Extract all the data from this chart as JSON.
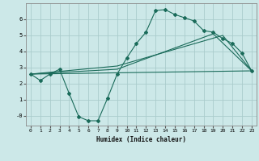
{
  "xlabel": "Humidex (Indice chaleur)",
  "ylabel": "",
  "background_color": "#cce8e8",
  "grid_color": "#aacccc",
  "line_color": "#1a6b5a",
  "xlim": [
    -0.5,
    23.5
  ],
  "ylim": [
    -0.6,
    7.0
  ],
  "yticks": [
    0,
    1,
    2,
    3,
    4,
    5,
    6
  ],
  "xticks": [
    0,
    1,
    2,
    3,
    4,
    5,
    6,
    7,
    8,
    9,
    10,
    11,
    12,
    13,
    14,
    15,
    16,
    17,
    18,
    19,
    20,
    21,
    22,
    23
  ],
  "curve1_x": [
    0,
    1,
    2,
    3,
    4,
    5,
    6,
    7,
    8,
    9,
    10,
    11,
    12,
    13,
    14,
    15,
    16,
    17,
    18,
    19,
    20,
    21,
    22,
    23
  ],
  "curve1_y": [
    2.6,
    2.2,
    2.6,
    2.9,
    1.4,
    -0.05,
    -0.3,
    -0.3,
    1.1,
    2.6,
    3.6,
    4.5,
    5.2,
    6.55,
    6.6,
    6.3,
    6.1,
    5.9,
    5.3,
    5.2,
    4.8,
    4.5,
    3.9,
    2.8
  ],
  "curve2_x": [
    0,
    23
  ],
  "curve2_y": [
    2.6,
    2.8
  ],
  "curve3_x": [
    0,
    9,
    19,
    23
  ],
  "curve3_y": [
    2.6,
    2.9,
    5.1,
    2.8
  ],
  "curve4_x": [
    0,
    9,
    20,
    23
  ],
  "curve4_y": [
    2.6,
    3.1,
    5.0,
    2.8
  ]
}
